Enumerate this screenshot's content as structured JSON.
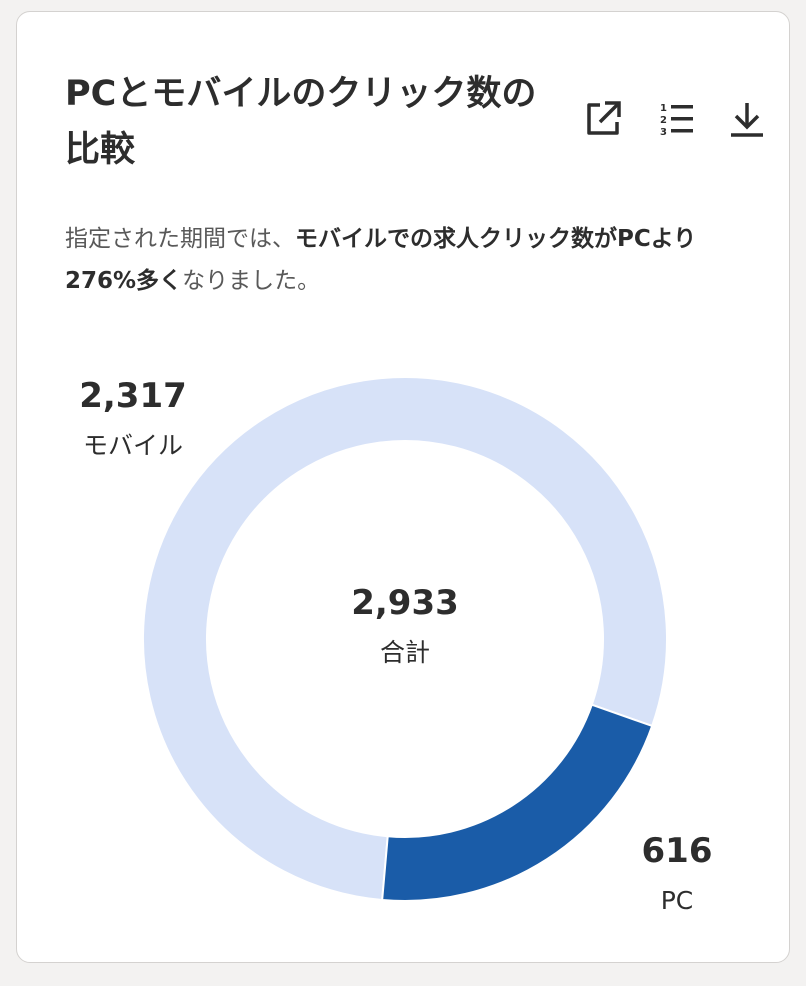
{
  "card": {
    "title": "PCとモバイルのクリック数の比較",
    "subtitle_prefix": "指定された期間では、",
    "subtitle_bold": "モバイルでの求人クリック数がPCより276%多く",
    "subtitle_suffix": "なりました。"
  },
  "toolbar": {
    "open_icon": "open-in-new-icon",
    "list_icon": "numbered-list-icon",
    "download_icon": "download-icon"
  },
  "chart_data": {
    "type": "pie",
    "style": "donut",
    "categories": [
      "モバイル",
      "PC"
    ],
    "values": [
      2317,
      616
    ],
    "value_labels": [
      "2,317",
      "616"
    ],
    "colors": [
      "#d7e2f8",
      "#1a5ca8"
    ],
    "center_value": "2,933",
    "center_label": "合計"
  }
}
